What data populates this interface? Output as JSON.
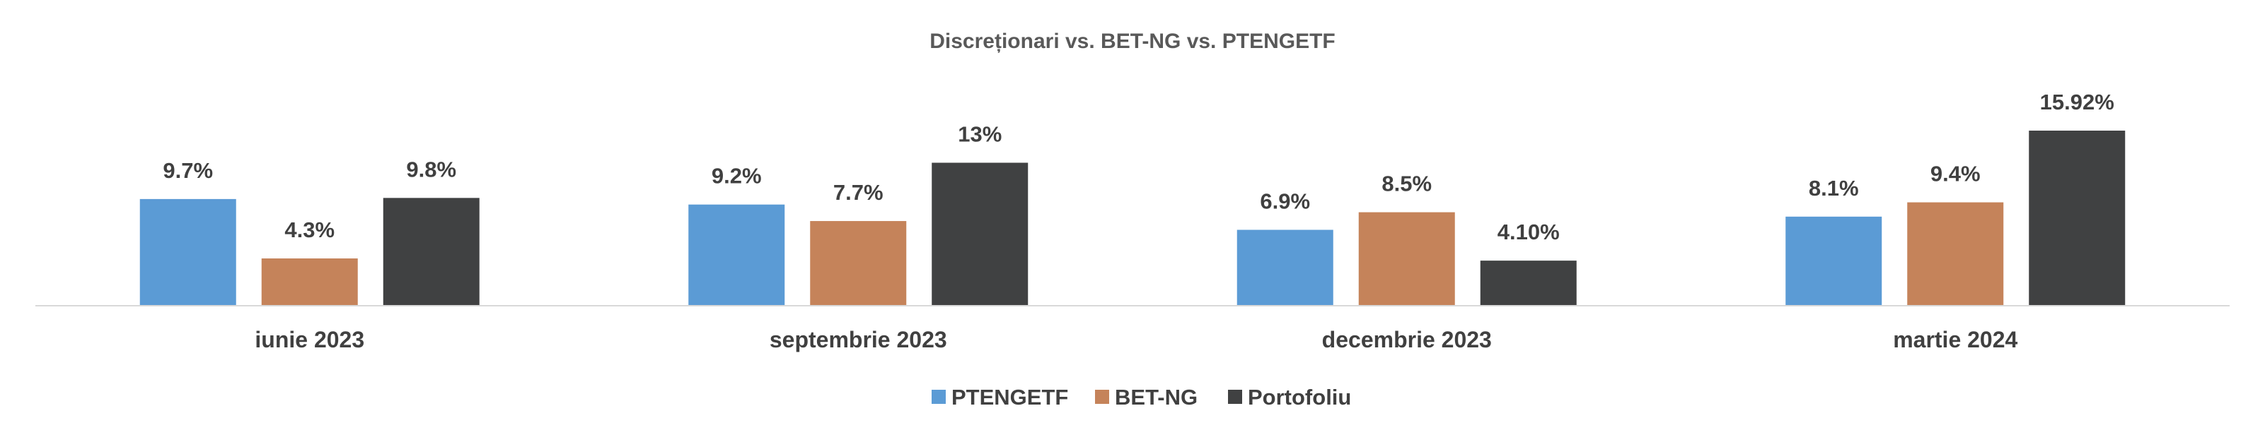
{
  "chart_data": {
    "type": "bar",
    "title": "Discreționari vs. BET-NG vs. PTENGETF",
    "categories": [
      "iunie 2023",
      "septembrie 2023",
      "decembrie 2023",
      "martie 2024"
    ],
    "series": [
      {
        "name": "PTENGETF",
        "color": "#5b9bd5",
        "values": [
          9.7,
          9.2,
          6.9,
          8.1
        ],
        "labels": [
          "9.7%",
          "9.2%",
          "6.9%",
          "8.1%"
        ]
      },
      {
        "name": "BET-NG",
        "color": "#c5835a",
        "values": [
          4.3,
          7.7,
          8.5,
          9.4
        ],
        "labels": [
          "4.3%",
          "7.7%",
          "8.5%",
          "9.4%"
        ]
      },
      {
        "name": "Portofoliu",
        "color": "#404142",
        "values": [
          9.8,
          13,
          4.1,
          15.92
        ],
        "labels": [
          "9.8%",
          "13%",
          "4.10%",
          "15.92%"
        ]
      }
    ],
    "ylim": [
      0,
      16.5
    ],
    "grid": false,
    "legend_position": "bottom",
    "xlabel": "",
    "ylabel": ""
  }
}
